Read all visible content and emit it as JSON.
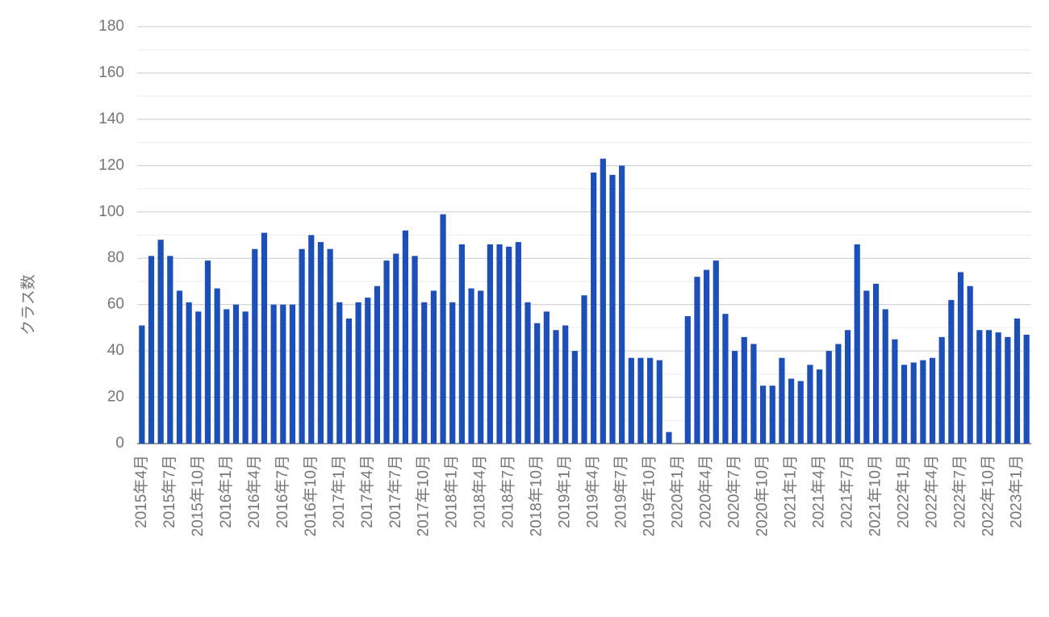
{
  "chart_data": {
    "type": "bar",
    "y_label": "クラス数",
    "categories": [
      "2015年4月",
      null,
      null,
      "2015年7月",
      null,
      null,
      "2015年10月",
      null,
      null,
      "2016年1月",
      null,
      null,
      "2016年4月",
      null,
      null,
      "2016年7月",
      null,
      null,
      "2016年10月",
      null,
      null,
      "2017年1月",
      null,
      null,
      "2017年4月",
      null,
      null,
      "2017年7月",
      null,
      null,
      "2017年10月",
      null,
      null,
      "2018年1月",
      null,
      null,
      "2018年4月",
      null,
      null,
      "2018年7月",
      null,
      null,
      "2018年10月",
      null,
      null,
      "2019年1月",
      null,
      null,
      "2019年4月",
      null,
      null,
      "2019年7月",
      null,
      null,
      "2019年10月",
      null,
      null,
      "2020年1月",
      null,
      null,
      "2020年4月",
      null,
      null,
      "2020年7月",
      null,
      null,
      "2020年10月",
      null,
      null,
      "2021年1月",
      null,
      null,
      "2021年4月",
      null,
      null,
      "2021年7月",
      null,
      null,
      "2021年10月",
      null,
      null,
      "2022年1月",
      null,
      null,
      "2022年4月",
      null,
      null,
      "2022年7月",
      null,
      null,
      "2022年10月",
      null,
      null,
      "2023年1月",
      null
    ],
    "values": [
      51,
      81,
      88,
      81,
      66,
      61,
      57,
      79,
      67,
      58,
      60,
      57,
      84,
      91,
      60,
      60,
      60,
      84,
      90,
      87,
      84,
      61,
      54,
      61,
      63,
      68,
      79,
      82,
      92,
      81,
      61,
      66,
      99,
      61,
      86,
      67,
      66,
      86,
      86,
      85,
      87,
      61,
      52,
      57,
      49,
      51,
      40,
      64,
      117,
      123,
      116,
      120,
      37,
      37,
      37,
      36,
      5,
      0,
      55,
      72,
      75,
      79,
      56,
      40,
      46,
      43,
      25,
      25,
      37,
      28,
      27,
      34,
      32,
      40,
      43,
      49,
      86,
      66,
      69,
      58,
      45,
      34,
      35,
      36,
      37,
      46,
      62,
      74,
      68,
      49,
      49,
      48,
      46,
      54,
      47
    ],
    "color": "#1c4fb8",
    "ylim": [
      0,
      180
    ],
    "yticks": [
      0,
      20,
      40,
      60,
      80,
      100,
      120,
      140,
      160,
      180
    ],
    "grid": true,
    "minor_grid": true
  }
}
